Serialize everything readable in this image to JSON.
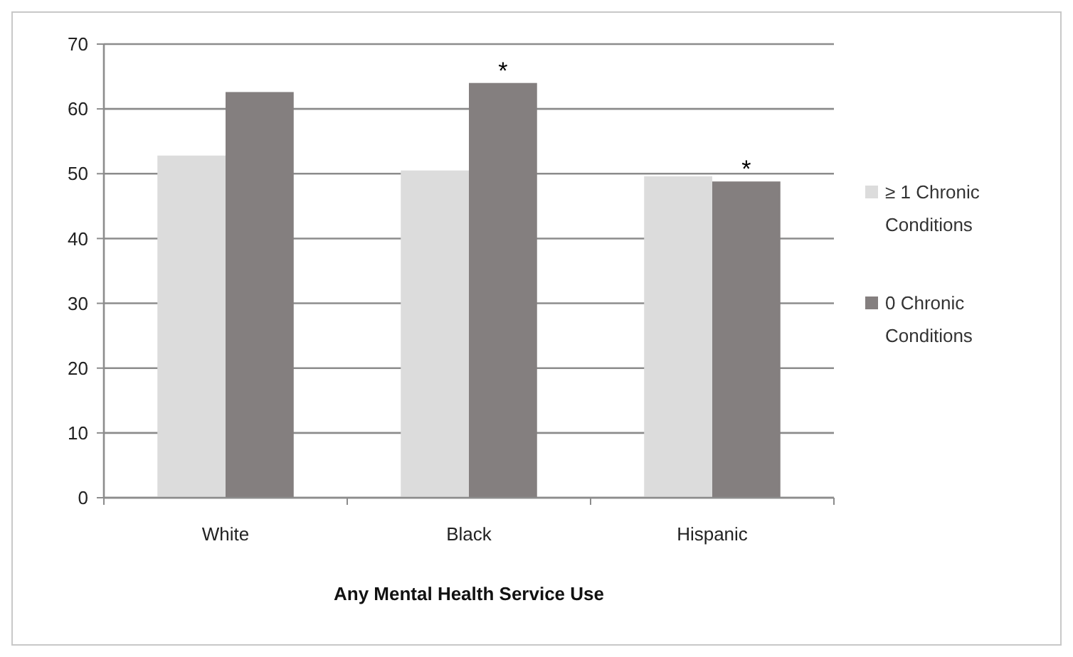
{
  "chart_data": {
    "type": "bar",
    "xlabel": "Any Mental Health Service Use",
    "categories": [
      "White",
      "Black",
      "Hispanic"
    ],
    "series": [
      {
        "name": "≥ 1 Chronic Conditions",
        "color": "#dcdcdc",
        "values": [
          52.8,
          50.5,
          49.6
        ]
      },
      {
        "name": "0 Chronic Conditions",
        "color": "#847f7f",
        "values": [
          62.6,
          64.0,
          48.8
        ]
      }
    ],
    "ylim": [
      0,
      70
    ],
    "yticks": [
      0,
      10,
      20,
      30,
      40,
      50,
      60,
      70
    ],
    "grid": "y",
    "legend": "right",
    "annotations": [
      {
        "text": "*",
        "x": "Black",
        "y": 64.0
      },
      {
        "text": "*",
        "x": "Hispanic",
        "y": 48.8
      }
    ]
  }
}
